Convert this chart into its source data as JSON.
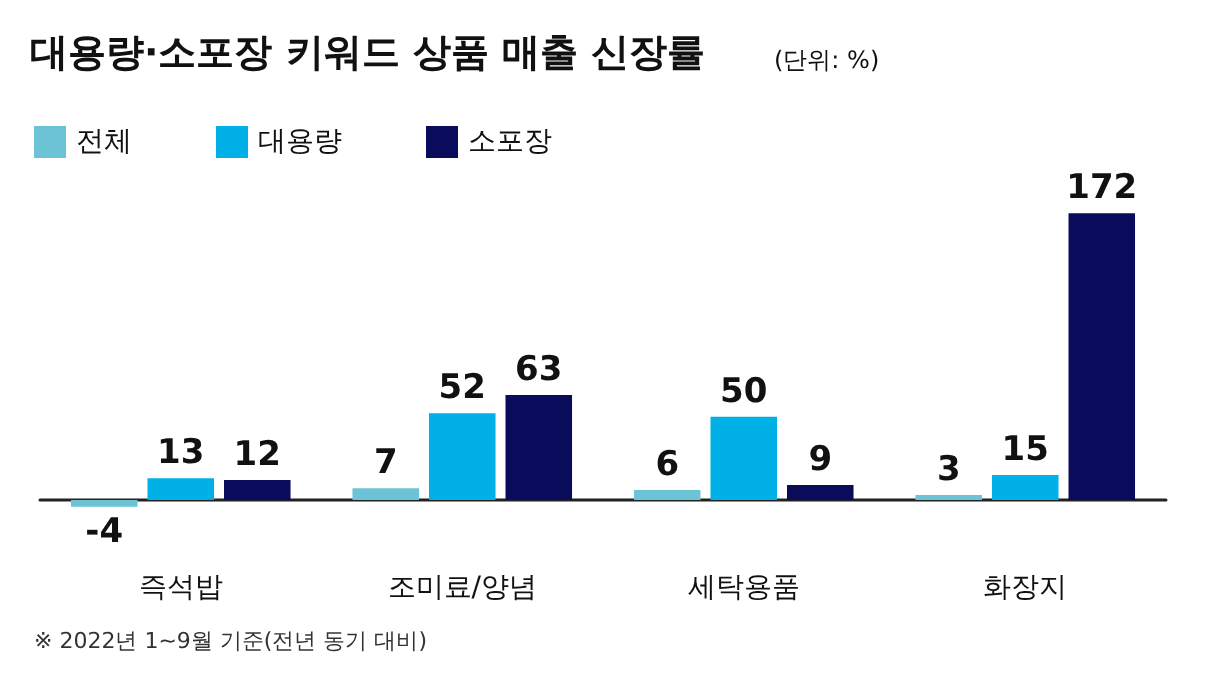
{
  "chart_data": {
    "type": "bar",
    "title": "대용량·소포장 키워드 상품 매출 신장률",
    "subtitle": "(단위: %)",
    "categories": [
      "즉석밥",
      "조미료/양념",
      "세탁용품",
      "화장지"
    ],
    "series": [
      {
        "name": "전체",
        "color": "#6cc3d5",
        "values": [
          -4,
          7,
          6,
          3
        ]
      },
      {
        "name": "대용량",
        "color": "#00b0e6",
        "values": [
          13,
          52,
          50,
          15
        ]
      },
      {
        "name": "소포장",
        "color": "#0b0b5c",
        "values": [
          12,
          63,
          9,
          172
        ]
      }
    ],
    "data_labels": true,
    "legend": "top left",
    "annotations": [
      "※ 2022년 1~9월 기준(전년 동기 대비)"
    ]
  }
}
